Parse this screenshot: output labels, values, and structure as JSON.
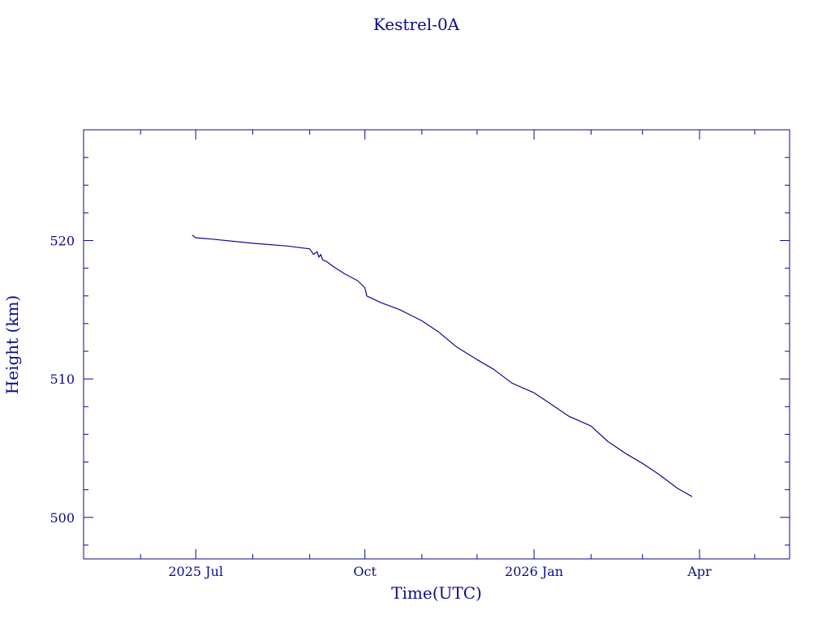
{
  "chart_data": {
    "type": "line",
    "title": "Kestrel-0A",
    "xlabel": "Time(UTC)",
    "ylabel": "Height (km)",
    "x_tick_labels": [
      {
        "date": "2025-07-01",
        "label": "2025 Jul"
      },
      {
        "date": "2025-10-01",
        "label": "Oct"
      },
      {
        "date": "2026-01-01",
        "label": "2026 Jan"
      },
      {
        "date": "2026-04-01",
        "label": "Apr"
      }
    ],
    "x_range": [
      "2025-05-01",
      "2026-05-20"
    ],
    "y_tick_labels": [
      "500",
      "510",
      "520"
    ],
    "y_ticks": [
      500,
      510,
      520
    ],
    "ylim": [
      497,
      528
    ],
    "grid": false,
    "line_color": "#0b0b8c",
    "series": [
      {
        "x": [
          "2025-06-29",
          "2025-07-01",
          "2025-07-10",
          "2025-08-01",
          "2025-08-20",
          "2025-09-01",
          "2025-09-03",
          "2025-09-05",
          "2025-09-06",
          "2025-09-07",
          "2025-09-08",
          "2025-09-10",
          "2025-09-14",
          "2025-09-20",
          "2025-09-27",
          "2025-10-01",
          "2025-10-02",
          "2025-10-10",
          "2025-10-20",
          "2025-11-01",
          "2025-11-10",
          "2025-11-20",
          "2025-12-01",
          "2025-12-10",
          "2025-12-20",
          "2026-01-01",
          "2026-01-10",
          "2026-01-20",
          "2026-02-01",
          "2026-02-10",
          "2026-02-20",
          "2026-03-01",
          "2026-03-10",
          "2026-03-20",
          "2026-03-28"
        ],
        "y": [
          520.4,
          520.2,
          520.1,
          519.8,
          519.6,
          519.4,
          519.0,
          519.2,
          518.8,
          519.0,
          518.6,
          518.5,
          518.1,
          517.6,
          517.1,
          516.6,
          516.0,
          515.5,
          515.0,
          514.2,
          513.4,
          512.3,
          511.4,
          510.7,
          509.7,
          509.0,
          508.2,
          507.3,
          506.6,
          505.5,
          504.6,
          503.9,
          503.1,
          502.1,
          501.5
        ]
      }
    ]
  }
}
